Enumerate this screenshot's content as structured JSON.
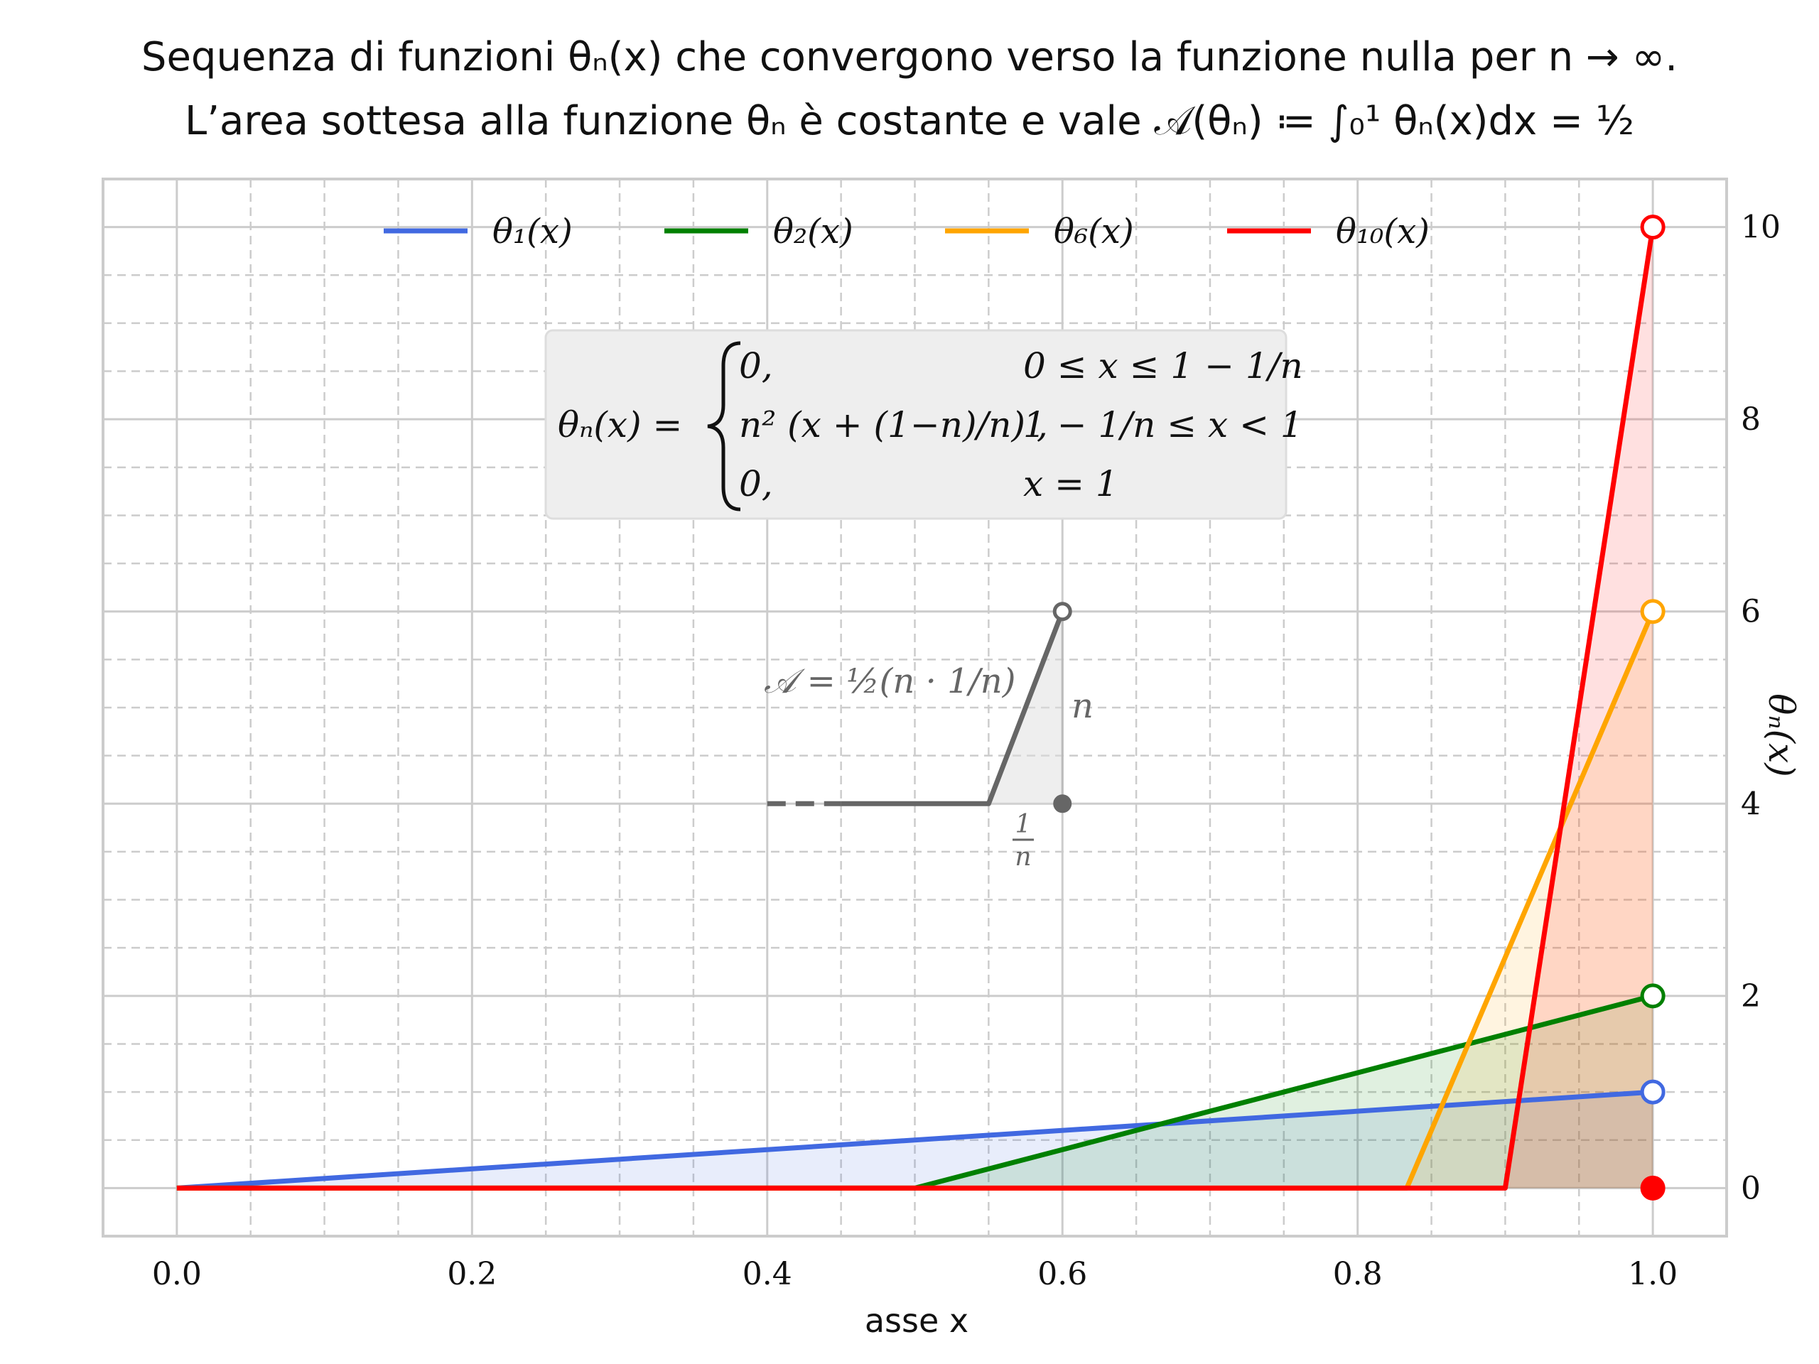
{
  "title": {
    "line1": "Sequenza di funzioni θₙ(x) che convergono verso la funzione nulla per n → ∞.",
    "line2": "L’area sottesa alla funzione θₙ è costante e vale 𝒜(θₙ) ≔ ∫₀¹ θₙ(x)dx = ½"
  },
  "colors": {
    "theta1": "#4169e1",
    "theta2": "#008000",
    "theta6": "#ffa500",
    "theta10": "#ff0000",
    "inset": "#666666",
    "grid": "#cccccc",
    "box_fill": "#eeeeee"
  },
  "formula_box": {
    "lhs": "θₙ(x) =",
    "rows": [
      {
        "expr": "0,",
        "cond": "0 ≤ x ≤ 1 − 1/n"
      },
      {
        "expr": "n² (x + (1−n)/n) ,",
        "cond": "1 − 1/n ≤ x < 1"
      },
      {
        "expr": "0,",
        "cond": "x = 1"
      }
    ]
  },
  "inset": {
    "area_label": "𝒜 = ½(n · 1/n)",
    "height_label": "n",
    "base_label_num": "1",
    "base_label_den": "n"
  },
  "chart_data": {
    "type": "line",
    "title": "",
    "xlabel": "asse x",
    "ylabel": "θₙ(x)",
    "xlim": [
      -0.05,
      1.05
    ],
    "ylim": [
      -0.5,
      10.5
    ],
    "grid": true,
    "legend_placement": "top-center",
    "x_ticks": [
      0.0,
      0.2,
      0.4,
      0.6,
      0.8,
      1.0
    ],
    "x_tick_labels": [
      "0.0",
      "0.2",
      "0.4",
      "0.6",
      "0.8",
      "1.0"
    ],
    "y_ticks": [
      0,
      2,
      4,
      6,
      8,
      10
    ],
    "y_tick_labels": [
      "0",
      "2",
      "4",
      "6",
      "8",
      "10"
    ],
    "y_axis_side": "right",
    "series": [
      {
        "key": "theta1",
        "name": "θ₁(x)",
        "n": 1,
        "points": [
          [
            0.0,
            0
          ],
          [
            1.0,
            1
          ]
        ],
        "open_end": [
          1.0,
          1
        ]
      },
      {
        "key": "theta2",
        "name": "θ₂(x)",
        "n": 2,
        "points": [
          [
            0.0,
            0
          ],
          [
            0.5,
            0
          ],
          [
            1.0,
            2
          ]
        ],
        "open_end": [
          1.0,
          2
        ]
      },
      {
        "key": "theta6",
        "name": "θ₆(x)",
        "n": 6,
        "points": [
          [
            0.0,
            0
          ],
          [
            0.8333,
            0
          ],
          [
            1.0,
            6
          ]
        ],
        "open_end": [
          1.0,
          6
        ]
      },
      {
        "key": "theta10",
        "name": "θ₁₀(x)",
        "n": 10,
        "points": [
          [
            0.0,
            0
          ],
          [
            0.9,
            0
          ],
          [
            1.0,
            10
          ]
        ],
        "open_end": [
          1.0,
          10
        ]
      }
    ],
    "filled_point": [
      1.0,
      0
    ],
    "inset_shape": {
      "dashed": [
        [
          0.4,
          4
        ],
        [
          0.45,
          4
        ]
      ],
      "solid": [
        [
          0.45,
          4
        ],
        [
          0.55,
          4
        ],
        [
          0.6,
          6
        ]
      ],
      "fill": [
        [
          0.55,
          4
        ],
        [
          0.6,
          6
        ],
        [
          0.6,
          4
        ]
      ],
      "open_point": [
        0.6,
        6
      ],
      "closed_point": [
        0.6,
        4
      ]
    }
  }
}
